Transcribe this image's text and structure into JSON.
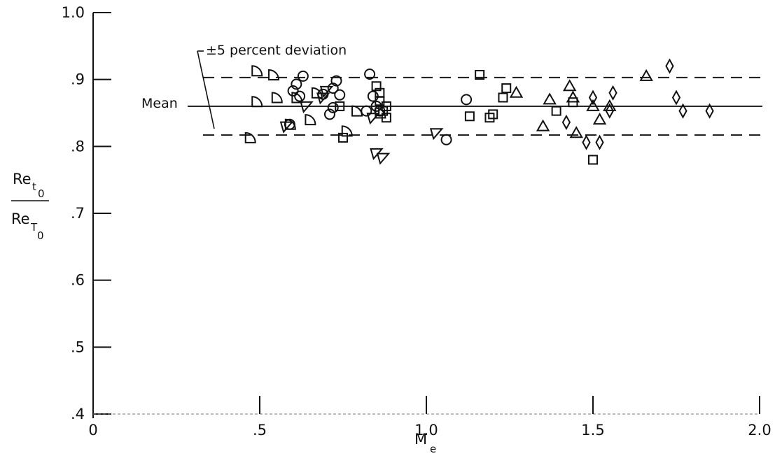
{
  "chart_data": {
    "type": "scatter",
    "title": "",
    "xlabel": "M",
    "xlabel_sub": "e",
    "ylabel_num": "Re",
    "ylabel_num_sub_t": "t",
    "ylabel_num_sub_0": "0",
    "ylabel_den": "Re",
    "ylabel_den_sub_T": "T",
    "ylabel_den_sub_0": "0",
    "xlim": [
      0,
      2.0
    ],
    "ylim": [
      0.4,
      1.0
    ],
    "x_ticks": [
      {
        "value": 0,
        "label": "0"
      },
      {
        "value": 0.5,
        "label": ".5"
      },
      {
        "value": 1.0,
        "label": "1.0"
      },
      {
        "value": 1.5,
        "label": "1.5"
      },
      {
        "value": 2.0,
        "label": "2.0"
      }
    ],
    "y_ticks": [
      {
        "value": 0.4,
        "label": ".4"
      },
      {
        "value": 0.5,
        "label": ".5"
      },
      {
        "value": 0.6,
        "label": ".6"
      },
      {
        "value": 0.7,
        "label": ".7"
      },
      {
        "value": 0.8,
        "label": ".8"
      },
      {
        "value": 0.9,
        "label": ".9"
      },
      {
        "value": 1.0,
        "label": "1.0"
      }
    ],
    "grid": false,
    "reference_lines": [
      {
        "name": "Mean",
        "y": 0.86,
        "style": "solid"
      },
      {
        "name": "+5 percent",
        "y": 0.903,
        "style": "dashed"
      },
      {
        "name": "-5 percent",
        "y": 0.817,
        "style": "dashed"
      }
    ],
    "annotations": {
      "mean_label": "Mean",
      "deviation_label": "±5 percent deviation"
    },
    "series": [
      {
        "marker": "half-circle",
        "points": [
          [
            0.47,
            0.813
          ],
          [
            0.49,
            0.913
          ],
          [
            0.49,
            0.867
          ],
          [
            0.54,
            0.907
          ],
          [
            0.55,
            0.873
          ],
          [
            0.59,
            0.833
          ],
          [
            0.61,
            0.873
          ],
          [
            0.65,
            0.84
          ],
          [
            0.67,
            0.88
          ],
          [
            0.76,
            0.823
          ],
          [
            0.79,
            0.853
          ],
          [
            0.86,
            0.85
          ]
        ]
      },
      {
        "marker": "circle",
        "points": [
          [
            0.59,
            0.833
          ],
          [
            0.6,
            0.883
          ],
          [
            0.61,
            0.893
          ],
          [
            0.62,
            0.875
          ],
          [
            0.63,
            0.905
          ],
          [
            0.69,
            0.878
          ],
          [
            0.71,
            0.848
          ],
          [
            0.72,
            0.887
          ],
          [
            0.72,
            0.858
          ],
          [
            0.73,
            0.898
          ],
          [
            0.74,
            0.877
          ],
          [
            0.82,
            0.853
          ],
          [
            0.83,
            0.908
          ],
          [
            0.84,
            0.875
          ],
          [
            0.85,
            0.86
          ],
          [
            0.86,
            0.853
          ],
          [
            1.06,
            0.81
          ],
          [
            1.12,
            0.87
          ]
        ]
      },
      {
        "marker": "triangle-down",
        "points": [
          [
            0.58,
            0.83
          ],
          [
            0.64,
            0.86
          ],
          [
            0.69,
            0.873
          ],
          [
            0.7,
            0.883
          ],
          [
            0.84,
            0.843
          ],
          [
            0.85,
            0.79
          ],
          [
            0.87,
            0.783
          ],
          [
            1.03,
            0.82
          ]
        ]
      },
      {
        "marker": "square",
        "points": [
          [
            0.74,
            0.86
          ],
          [
            0.75,
            0.813
          ],
          [
            0.85,
            0.89
          ],
          [
            0.86,
            0.88
          ],
          [
            0.86,
            0.868
          ],
          [
            0.87,
            0.853
          ],
          [
            0.88,
            0.86
          ],
          [
            0.88,
            0.843
          ],
          [
            1.13,
            0.845
          ],
          [
            1.16,
            0.907
          ],
          [
            1.19,
            0.843
          ],
          [
            1.2,
            0.848
          ],
          [
            1.23,
            0.873
          ],
          [
            1.24,
            0.887
          ],
          [
            1.39,
            0.853
          ],
          [
            1.44,
            0.866
          ],
          [
            1.5,
            0.78
          ]
        ]
      },
      {
        "marker": "triangle",
        "points": [
          [
            1.27,
            0.88
          ],
          [
            1.35,
            0.83
          ],
          [
            1.37,
            0.87
          ],
          [
            1.43,
            0.89
          ],
          [
            1.44,
            0.873
          ],
          [
            1.45,
            0.82
          ],
          [
            1.5,
            0.86
          ],
          [
            1.52,
            0.84
          ],
          [
            1.55,
            0.86
          ],
          [
            1.66,
            0.905
          ]
        ]
      },
      {
        "marker": "diamond",
        "points": [
          [
            1.42,
            0.836
          ],
          [
            1.48,
            0.806
          ],
          [
            1.5,
            0.873
          ],
          [
            1.52,
            0.806
          ],
          [
            1.55,
            0.853
          ],
          [
            1.56,
            0.88
          ],
          [
            1.73,
            0.92
          ],
          [
            1.75,
            0.873
          ],
          [
            1.77,
            0.853
          ],
          [
            1.85,
            0.853
          ]
        ]
      }
    ]
  }
}
